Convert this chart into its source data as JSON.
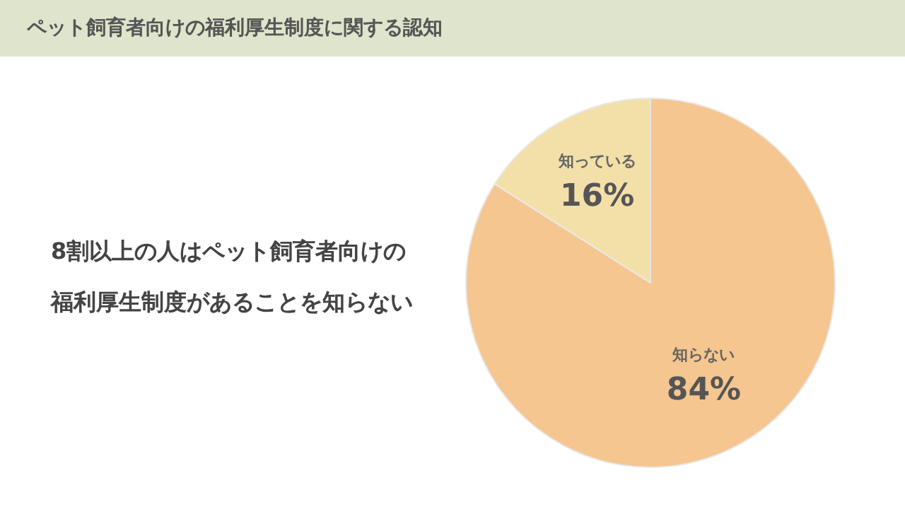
{
  "chart_data": {
    "type": "pie",
    "title": "ペット飼育者向けの福利厚生制度に関する認知",
    "categories": [
      "知らない",
      "知っている"
    ],
    "values": [
      84,
      16
    ],
    "value_labels": [
      "84%",
      "16%"
    ],
    "colors": [
      "#f5c68f",
      "#f3e0a8"
    ],
    "legend": false,
    "annotations": [
      "8割以上の人はペット飼育者向けの",
      "福利厚生制度があることを知らない"
    ]
  }
}
